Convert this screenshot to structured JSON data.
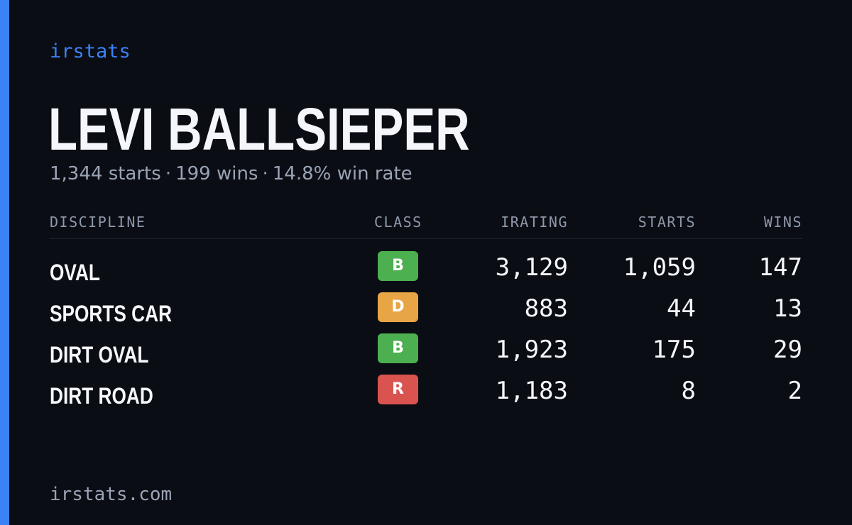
{
  "brand": "irstats",
  "player": {
    "name": "LEVI BALLSIEPER",
    "starts": "1,344 starts",
    "wins": "199 wins",
    "win_rate": "14.8% win rate",
    "separator": "·"
  },
  "table": {
    "headers": {
      "discipline": "DISCIPLINE",
      "class": "CLASS",
      "irating": "IRATING",
      "starts": "STARTS",
      "wins": "WINS"
    },
    "rows": [
      {
        "discipline": "OVAL",
        "class": "B",
        "class_color": "#4caf50",
        "irating": "3,129",
        "starts": "1,059",
        "wins": "147"
      },
      {
        "discipline": "SPORTS CAR",
        "class": "D",
        "class_color": "#e8a545",
        "irating": "883",
        "starts": "44",
        "wins": "13"
      },
      {
        "discipline": "DIRT OVAL",
        "class": "B",
        "class_color": "#4caf50",
        "irating": "1,923",
        "starts": "175",
        "wins": "29"
      },
      {
        "discipline": "DIRT ROAD",
        "class": "R",
        "class_color": "#d9534f",
        "irating": "1,183",
        "starts": "8",
        "wins": "2"
      }
    ]
  },
  "footer": "irstats.com",
  "colors": {
    "accent": "#3b82f6",
    "background": "#0b0d14"
  }
}
